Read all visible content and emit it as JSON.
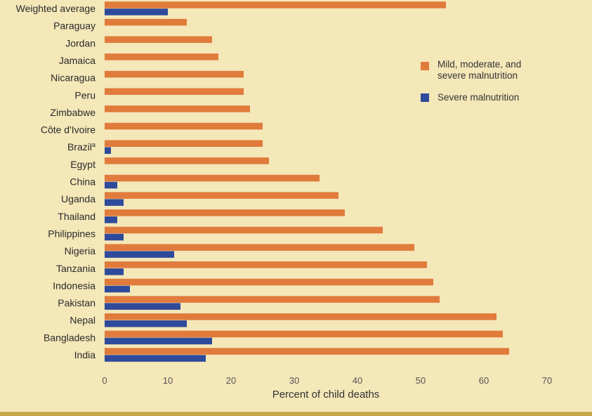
{
  "chart_data": {
    "type": "bar",
    "orientation": "horizontal",
    "xlabel": "Percent of child deaths",
    "xlim": [
      0,
      70
    ],
    "xticks": [
      0,
      10,
      20,
      30,
      40,
      50,
      60,
      70
    ],
    "grid": false,
    "legend_position": "right",
    "categories": [
      "Weighted average",
      "Paraguay",
      "Jordan",
      "Jamaica",
      "Nicaragua",
      "Peru",
      "Zimbabwe",
      "Côte d'Ivoire",
      "Brazil",
      "Egypt",
      "China",
      "Uganda",
      "Thailand",
      "Philippines",
      "Nigeria",
      "Tanzania",
      "Indonesia",
      "Pakistan",
      "Nepal",
      "Bangladesh",
      "India"
    ],
    "category_superscripts": {
      "Brazil": "a"
    },
    "series": [
      {
        "name": "Mild, moderate, and severe malnutrition",
        "color": "#e07b3c",
        "values": [
          54,
          13,
          17,
          18,
          22,
          22,
          23,
          25,
          25,
          26,
          34,
          37,
          38,
          44,
          49,
          51,
          52,
          53,
          62,
          63,
          64
        ]
      },
      {
        "name": "Severe malnutrition",
        "color": "#2e4a9b",
        "values": [
          10,
          null,
          null,
          null,
          null,
          null,
          null,
          null,
          1,
          null,
          2,
          3,
          2,
          3,
          11,
          3,
          4,
          12,
          13,
          17,
          16
        ]
      }
    ]
  }
}
